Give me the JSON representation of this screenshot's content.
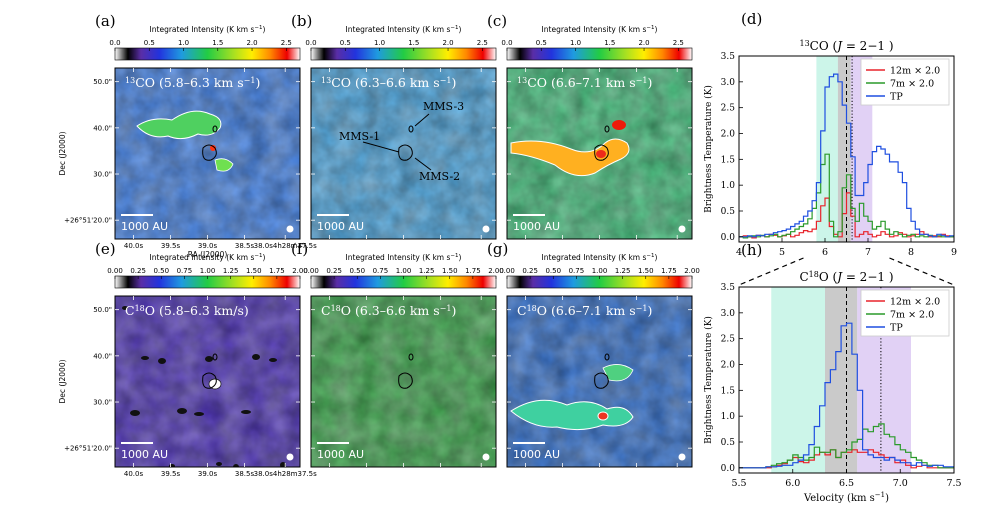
{
  "figure": {
    "map_panels": [
      {
        "id": "a",
        "letter": "(a)",
        "molecule": "13CO",
        "iso": "13",
        "mol": "CO",
        "range": "(5.8–6.3 km s",
        "range_tail": ")",
        "colorbar_label": "Integrated Intensity (K km s",
        "cb_ticks": [
          "0.0",
          "0.5",
          "1.0",
          "1.5",
          "2.0",
          "2.5"
        ],
        "cb_max": 2.7,
        "scale_bar": "1000 AU",
        "labels": [],
        "base": "#3e7fe6"
      },
      {
        "id": "b",
        "letter": "(b)",
        "molecule": "13CO",
        "iso": "13",
        "mol": "CO",
        "range": "(6.3–6.6 km s",
        "range_tail": ")",
        "colorbar_label": "Integrated Intensity (K km s",
        "cb_ticks": [
          "0.0",
          "0.5",
          "1.0",
          "1.5",
          "2.0",
          "2.5"
        ],
        "cb_max": 2.7,
        "scale_bar": "1000 AU",
        "labels": [
          "MMS-1",
          "MMS-2",
          "MMS-3"
        ],
        "base": "#4aa6e0"
      },
      {
        "id": "c",
        "letter": "(c)",
        "molecule": "13CO",
        "iso": "13",
        "mol": "CO",
        "range": "(6.6–7.1 km s",
        "range_tail": ")",
        "colorbar_label": "Integrated Intensity (K km s",
        "cb_ticks": [
          "0.0",
          "0.5",
          "1.0",
          "1.5",
          "2.0",
          "2.5"
        ],
        "cb_max": 2.7,
        "scale_bar": "1000 AU",
        "labels": [],
        "base": "#3fbf7a"
      },
      {
        "id": "e",
        "letter": "(e)",
        "molecule": "C18O",
        "iso": "18",
        "mol": "C",
        "range": "(5.8–6.3 km/s)",
        "range_tail": "",
        "colorbar_label": "Integrated Intensity (K km s",
        "cb_ticks": [
          "0.00",
          "0.25",
          "0.50",
          "0.75",
          "1.00",
          "1.25",
          "1.50",
          "1.75",
          "2.00"
        ],
        "cb_max": 2.0,
        "scale_bar": "1000 AU",
        "labels": [],
        "base": "#4b2fb8"
      },
      {
        "id": "f",
        "letter": "(f)",
        "molecule": "C18O",
        "iso": "18",
        "mol": "C",
        "range": "(6.3–6.6 km s",
        "range_tail": ")",
        "colorbar_label": "Integrated Intensity (K km s",
        "cb_ticks": [
          "0.00",
          "0.25",
          "0.50",
          "0.75",
          "1.00",
          "1.25",
          "1.50",
          "1.75",
          "2.00"
        ],
        "cb_max": 2.0,
        "scale_bar": "1000 AU",
        "labels": [],
        "base": "#3aa64a"
      },
      {
        "id": "g",
        "letter": "(g)",
        "molecule": "C18O",
        "iso": "18",
        "mol": "C",
        "range": "(6.6–7.1 km s",
        "range_tail": ")",
        "colorbar_label": "Integrated Intensity (K km s",
        "cb_ticks": [
          "0.00",
          "0.25",
          "0.50",
          "0.75",
          "1.00",
          "1.25",
          "1.50",
          "1.75",
          "2.00"
        ],
        "cb_max": 2.0,
        "scale_bar": "1000 AU",
        "labels": [],
        "base": "#2f6fd0"
      }
    ],
    "map_axes": {
      "dec_label": "Dec (J2000)",
      "ra_label": "RA (J2000)",
      "dec_ticks": [
        "50.0\"",
        "40.0\"",
        "30.0\"",
        "+26°51'20.0\""
      ],
      "ra_ticks": [
        "40.0s",
        "39.5s",
        "39.0s",
        "38.5s",
        "38.0s4h28m37.5s"
      ]
    },
    "colors": {
      "12m": "#e8232b",
      "7m": "#2a9a2a",
      "tp": "#1f4fe0",
      "teal_band": "#bff3e4",
      "gray_band": "#bdbdbd",
      "purple_band": "#d9c6f2"
    }
  },
  "chart_data": [
    {
      "type": "line",
      "panel": "(d)",
      "title_pre": "13",
      "title_mol": "CO (",
      "title_J": "J",
      "title_post": " = 2−1 )",
      "xlabel": "",
      "ylabel": "Brightness Temperature (K)",
      "xlim": [
        4,
        9
      ],
      "ylim": [
        -0.1,
        3.5
      ],
      "xticks": [
        4,
        5,
        6,
        7,
        8,
        9
      ],
      "yticks": [
        0.0,
        0.5,
        1.0,
        1.5,
        2.0,
        2.5,
        3.0,
        3.5
      ],
      "bands": [
        {
          "from": 5.8,
          "to": 6.3,
          "color": "teal"
        },
        {
          "from": 6.3,
          "to": 6.6,
          "color": "gray"
        },
        {
          "from": 6.6,
          "to": 7.1,
          "color": "purple"
        }
      ],
      "vlines": [
        {
          "x": 6.5,
          "style": "dashed"
        },
        {
          "x": 6.63,
          "style": "dotted"
        }
      ],
      "legend": [
        "12m × 2.0",
        "7m × 2.0",
        "TP"
      ],
      "series": [
        {
          "name": "12m × 2.0",
          "color": "red",
          "step": true,
          "x": [
            4.0,
            4.1,
            4.2,
            4.3,
            4.4,
            4.5,
            4.6,
            4.7,
            4.8,
            4.9,
            5.0,
            5.1,
            5.2,
            5.3,
            5.4,
            5.5,
            5.6,
            5.7,
            5.8,
            5.9,
            6.0,
            6.1,
            6.2,
            6.3,
            6.4,
            6.5,
            6.6,
            6.7,
            6.8,
            6.9,
            7.0,
            7.1,
            7.2,
            7.3,
            7.4,
            7.5,
            7.6,
            7.7,
            7.8,
            7.9,
            8.0,
            8.1,
            8.2,
            8.3,
            8.4,
            8.5,
            8.6,
            8.7,
            8.8,
            8.9
          ],
          "y": [
            0.0,
            0.02,
            0.0,
            -0.02,
            0.03,
            0.02,
            0.0,
            0.05,
            0.03,
            0.0,
            0.02,
            0.05,
            0.0,
            0.03,
            0.08,
            0.12,
            0.1,
            0.15,
            0.3,
            0.6,
            0.75,
            0.2,
            0.05,
            0.0,
            0.45,
            0.85,
            0.4,
            0.0,
            0.05,
            0.1,
            0.05,
            0.0,
            0.03,
            0.1,
            0.05,
            0.0,
            0.02,
            0.08,
            0.05,
            0.0,
            0.02,
            0.05,
            0.1,
            0.05,
            0.0,
            0.02,
            0.0,
            0.05,
            0.02,
            0.0
          ]
        },
        {
          "name": "7m × 2.0",
          "color": "green",
          "step": true,
          "x": [
            4.0,
            4.1,
            4.2,
            4.3,
            4.4,
            4.5,
            4.6,
            4.7,
            4.8,
            4.9,
            5.0,
            5.1,
            5.2,
            5.3,
            5.4,
            5.5,
            5.6,
            5.7,
            5.8,
            5.9,
            6.0,
            6.1,
            6.2,
            6.3,
            6.4,
            6.5,
            6.6,
            6.7,
            6.8,
            6.9,
            7.0,
            7.1,
            7.2,
            7.3,
            7.4,
            7.5,
            7.6,
            7.7,
            7.8,
            7.9,
            8.0,
            8.1,
            8.2,
            8.3,
            8.4,
            8.5,
            8.6,
            8.7,
            8.8,
            8.9
          ],
          "y": [
            0.0,
            -0.02,
            0.0,
            0.02,
            0.0,
            0.03,
            0.0,
            0.02,
            0.05,
            0.0,
            0.03,
            0.05,
            0.1,
            0.15,
            0.2,
            0.25,
            0.35,
            0.55,
            0.85,
            1.4,
            1.6,
            0.3,
            0.0,
            0.1,
            0.95,
            1.2,
            0.55,
            0.3,
            0.65,
            0.4,
            0.3,
            0.15,
            0.2,
            0.3,
            0.15,
            0.05,
            0.1,
            0.05,
            0.0,
            0.03,
            0.05,
            0.0,
            0.02,
            0.0,
            0.03,
            0.0,
            0.02,
            0.0,
            0.0,
            0.0
          ]
        },
        {
          "name": "TP",
          "color": "blue",
          "step": true,
          "x": [
            4.0,
            4.1,
            4.2,
            4.3,
            4.4,
            4.5,
            4.6,
            4.7,
            4.8,
            4.9,
            5.0,
            5.1,
            5.2,
            5.3,
            5.4,
            5.5,
            5.6,
            5.7,
            5.8,
            5.9,
            6.0,
            6.1,
            6.2,
            6.3,
            6.4,
            6.5,
            6.6,
            6.7,
            6.8,
            6.9,
            7.0,
            7.1,
            7.2,
            7.3,
            7.4,
            7.5,
            7.6,
            7.7,
            7.8,
            7.9,
            8.0,
            8.1,
            8.2,
            8.3,
            8.4,
            8.5,
            8.6,
            8.7,
            8.8,
            8.9
          ],
          "y": [
            0.0,
            0.0,
            0.02,
            0.0,
            0.03,
            0.02,
            0.05,
            0.05,
            0.08,
            0.1,
            0.12,
            0.15,
            0.2,
            0.25,
            0.3,
            0.4,
            0.5,
            0.7,
            1.05,
            2.05,
            2.9,
            3.1,
            3.15,
            3.0,
            2.55,
            2.2,
            1.55,
            0.8,
            0.8,
            1.05,
            1.4,
            1.65,
            1.75,
            1.7,
            1.6,
            1.45,
            1.45,
            1.25,
            1.05,
            0.55,
            0.3,
            0.15,
            0.05,
            0.05,
            0.02,
            0.0,
            0.05,
            0.03,
            0.0,
            0.02
          ]
        }
      ]
    },
    {
      "type": "line",
      "panel": "(h)",
      "title_pre": "18",
      "title_mol": "O (",
      "title_C": "C",
      "title_J": "J",
      "title_post": " = 2−1 )",
      "xlabel": "Velocity (km s",
      "ylabel": "Brightness Temperature (K)",
      "xlim": [
        5.5,
        7.5
      ],
      "ylim": [
        -0.1,
        3.5
      ],
      "xticks": [
        5.5,
        6.0,
        6.5,
        7.0,
        7.5
      ],
      "yticks": [
        0.0,
        0.5,
        1.0,
        1.5,
        2.0,
        2.5,
        3.0,
        3.5
      ],
      "bands": [
        {
          "from": 5.8,
          "to": 6.3,
          "color": "teal"
        },
        {
          "from": 6.3,
          "to": 6.6,
          "color": "gray"
        },
        {
          "from": 6.6,
          "to": 7.1,
          "color": "purple"
        }
      ],
      "vlines": [
        {
          "x": 6.5,
          "style": "dashed"
        },
        {
          "x": 6.82,
          "style": "dotted"
        }
      ],
      "legend": [
        "12m × 2.0",
        "7m × 2.0",
        "TP"
      ],
      "series": [
        {
          "name": "12m × 2.0",
          "color": "red",
          "step": true,
          "x": [
            5.5,
            5.55,
            5.6,
            5.65,
            5.7,
            5.75,
            5.8,
            5.85,
            5.9,
            5.95,
            6.0,
            6.05,
            6.1,
            6.15,
            6.2,
            6.25,
            6.3,
            6.35,
            6.4,
            6.45,
            6.5,
            6.55,
            6.6,
            6.65,
            6.7,
            6.75,
            6.8,
            6.85,
            6.9,
            6.95,
            7.0,
            7.05,
            7.1,
            7.15,
            7.2,
            7.25,
            7.3,
            7.35,
            7.4,
            7.45
          ],
          "y": [
            0.0,
            0.0,
            0.0,
            0.0,
            0.0,
            0.0,
            0.02,
            0.05,
            0.08,
            0.15,
            0.2,
            0.12,
            0.1,
            0.15,
            0.25,
            0.3,
            0.25,
            0.35,
            0.2,
            0.3,
            0.3,
            0.35,
            0.3,
            0.3,
            0.35,
            0.3,
            0.25,
            0.2,
            0.2,
            0.1,
            0.15,
            0.05,
            0.0,
            0.03,
            0.05,
            0.0,
            0.0,
            0.0,
            0.0,
            0.0
          ]
        },
        {
          "name": "7m × 2.0",
          "color": "green",
          "step": true,
          "x": [
            5.5,
            5.55,
            5.6,
            5.65,
            5.7,
            5.75,
            5.8,
            5.85,
            5.9,
            5.95,
            6.0,
            6.05,
            6.1,
            6.15,
            6.2,
            6.25,
            6.3,
            6.35,
            6.4,
            6.45,
            6.5,
            6.55,
            6.6,
            6.65,
            6.7,
            6.75,
            6.8,
            6.85,
            6.9,
            6.95,
            7.0,
            7.05,
            7.1,
            7.15,
            7.2,
            7.25,
            7.3,
            7.35,
            7.4,
            7.45
          ],
          "y": [
            0.0,
            0.0,
            0.0,
            0.0,
            0.0,
            0.02,
            0.05,
            0.08,
            0.1,
            0.15,
            0.25,
            0.2,
            0.15,
            0.2,
            0.4,
            0.3,
            0.3,
            0.35,
            0.2,
            0.3,
            0.35,
            0.5,
            0.55,
            0.75,
            0.7,
            0.8,
            0.85,
            0.65,
            0.6,
            0.45,
            0.35,
            0.3,
            0.2,
            0.15,
            0.1,
            0.05,
            0.05,
            0.0,
            0.0,
            0.0
          ]
        },
        {
          "name": "TP",
          "color": "blue",
          "step": true,
          "x": [
            5.5,
            5.55,
            5.6,
            5.65,
            5.7,
            5.75,
            5.8,
            5.85,
            5.9,
            5.95,
            6.0,
            6.05,
            6.1,
            6.15,
            6.2,
            6.25,
            6.3,
            6.35,
            6.4,
            6.45,
            6.5,
            6.55,
            6.6,
            6.65,
            6.7,
            6.75,
            6.8,
            6.85,
            6.9,
            6.95,
            7.0,
            7.05,
            7.1,
            7.15,
            7.2,
            7.25,
            7.3,
            7.35,
            7.4,
            7.45
          ],
          "y": [
            0.0,
            0.0,
            0.0,
            0.0,
            0.0,
            0.02,
            0.02,
            0.03,
            0.05,
            0.05,
            0.1,
            0.15,
            0.25,
            0.45,
            0.8,
            1.2,
            1.65,
            1.9,
            2.25,
            2.75,
            2.8,
            2.2,
            1.5,
            0.35,
            0.25,
            0.2,
            0.2,
            0.15,
            0.2,
            0.15,
            0.1,
            0.1,
            0.05,
            0.1,
            0.05,
            0.03,
            0.05,
            0.05,
            0.02,
            0.02
          ]
        }
      ]
    }
  ]
}
